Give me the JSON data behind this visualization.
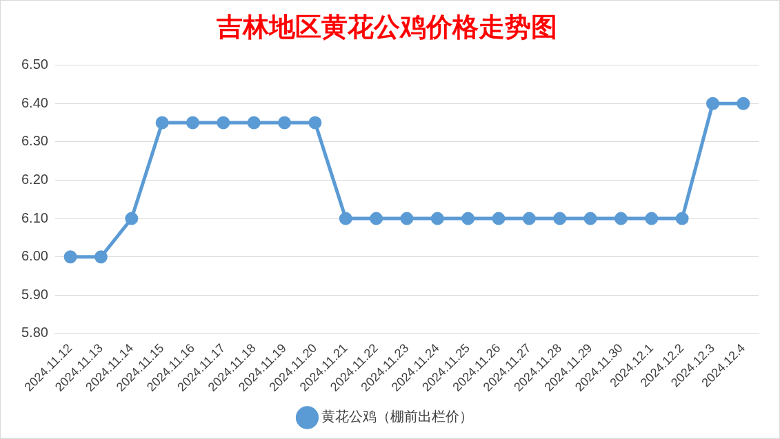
{
  "chart_data": {
    "type": "line",
    "title": "吉林地区黄花公鸡价格走势图",
    "categories": [
      "2024.11.12",
      "2024.11.13",
      "2024.11.14",
      "2024.11.15",
      "2024.11.16",
      "2024.11.17",
      "2024.11.18",
      "2024.11.19",
      "2024.11.20",
      "2024.11.21",
      "2024.11.22",
      "2024.11.23",
      "2024.11.24",
      "2024.11.25",
      "2024.11.26",
      "2024.11.27",
      "2024.11.28",
      "2024.11.29",
      "2024.11.30",
      "2024.12.1",
      "2024.12.2",
      "2024.12.3",
      "2024.12.4"
    ],
    "series": [
      {
        "name": "黄花公鸡（棚前出栏价）",
        "color": "#5b9bd5",
        "values": [
          6.0,
          6.0,
          6.1,
          6.35,
          6.35,
          6.35,
          6.35,
          6.35,
          6.35,
          6.1,
          6.1,
          6.1,
          6.1,
          6.1,
          6.1,
          6.1,
          6.1,
          6.1,
          6.1,
          6.1,
          6.1,
          6.4,
          6.4
        ]
      }
    ],
    "ylim": [
      5.8,
      6.5
    ],
    "yticks": [
      {
        "value": 5.8,
        "label": "5.80"
      },
      {
        "value": 5.9,
        "label": "5.90"
      },
      {
        "value": 6.0,
        "label": "6.00"
      },
      {
        "value": 6.1,
        "label": "6.10"
      },
      {
        "value": 6.2,
        "label": "6.20"
      },
      {
        "value": 6.3,
        "label": "6.30"
      },
      {
        "value": 6.4,
        "label": "6.40"
      },
      {
        "value": 6.5,
        "label": "6.50"
      }
    ],
    "grid": "y",
    "legend": "bottom",
    "marker": "circle",
    "line_style": "solid"
  }
}
